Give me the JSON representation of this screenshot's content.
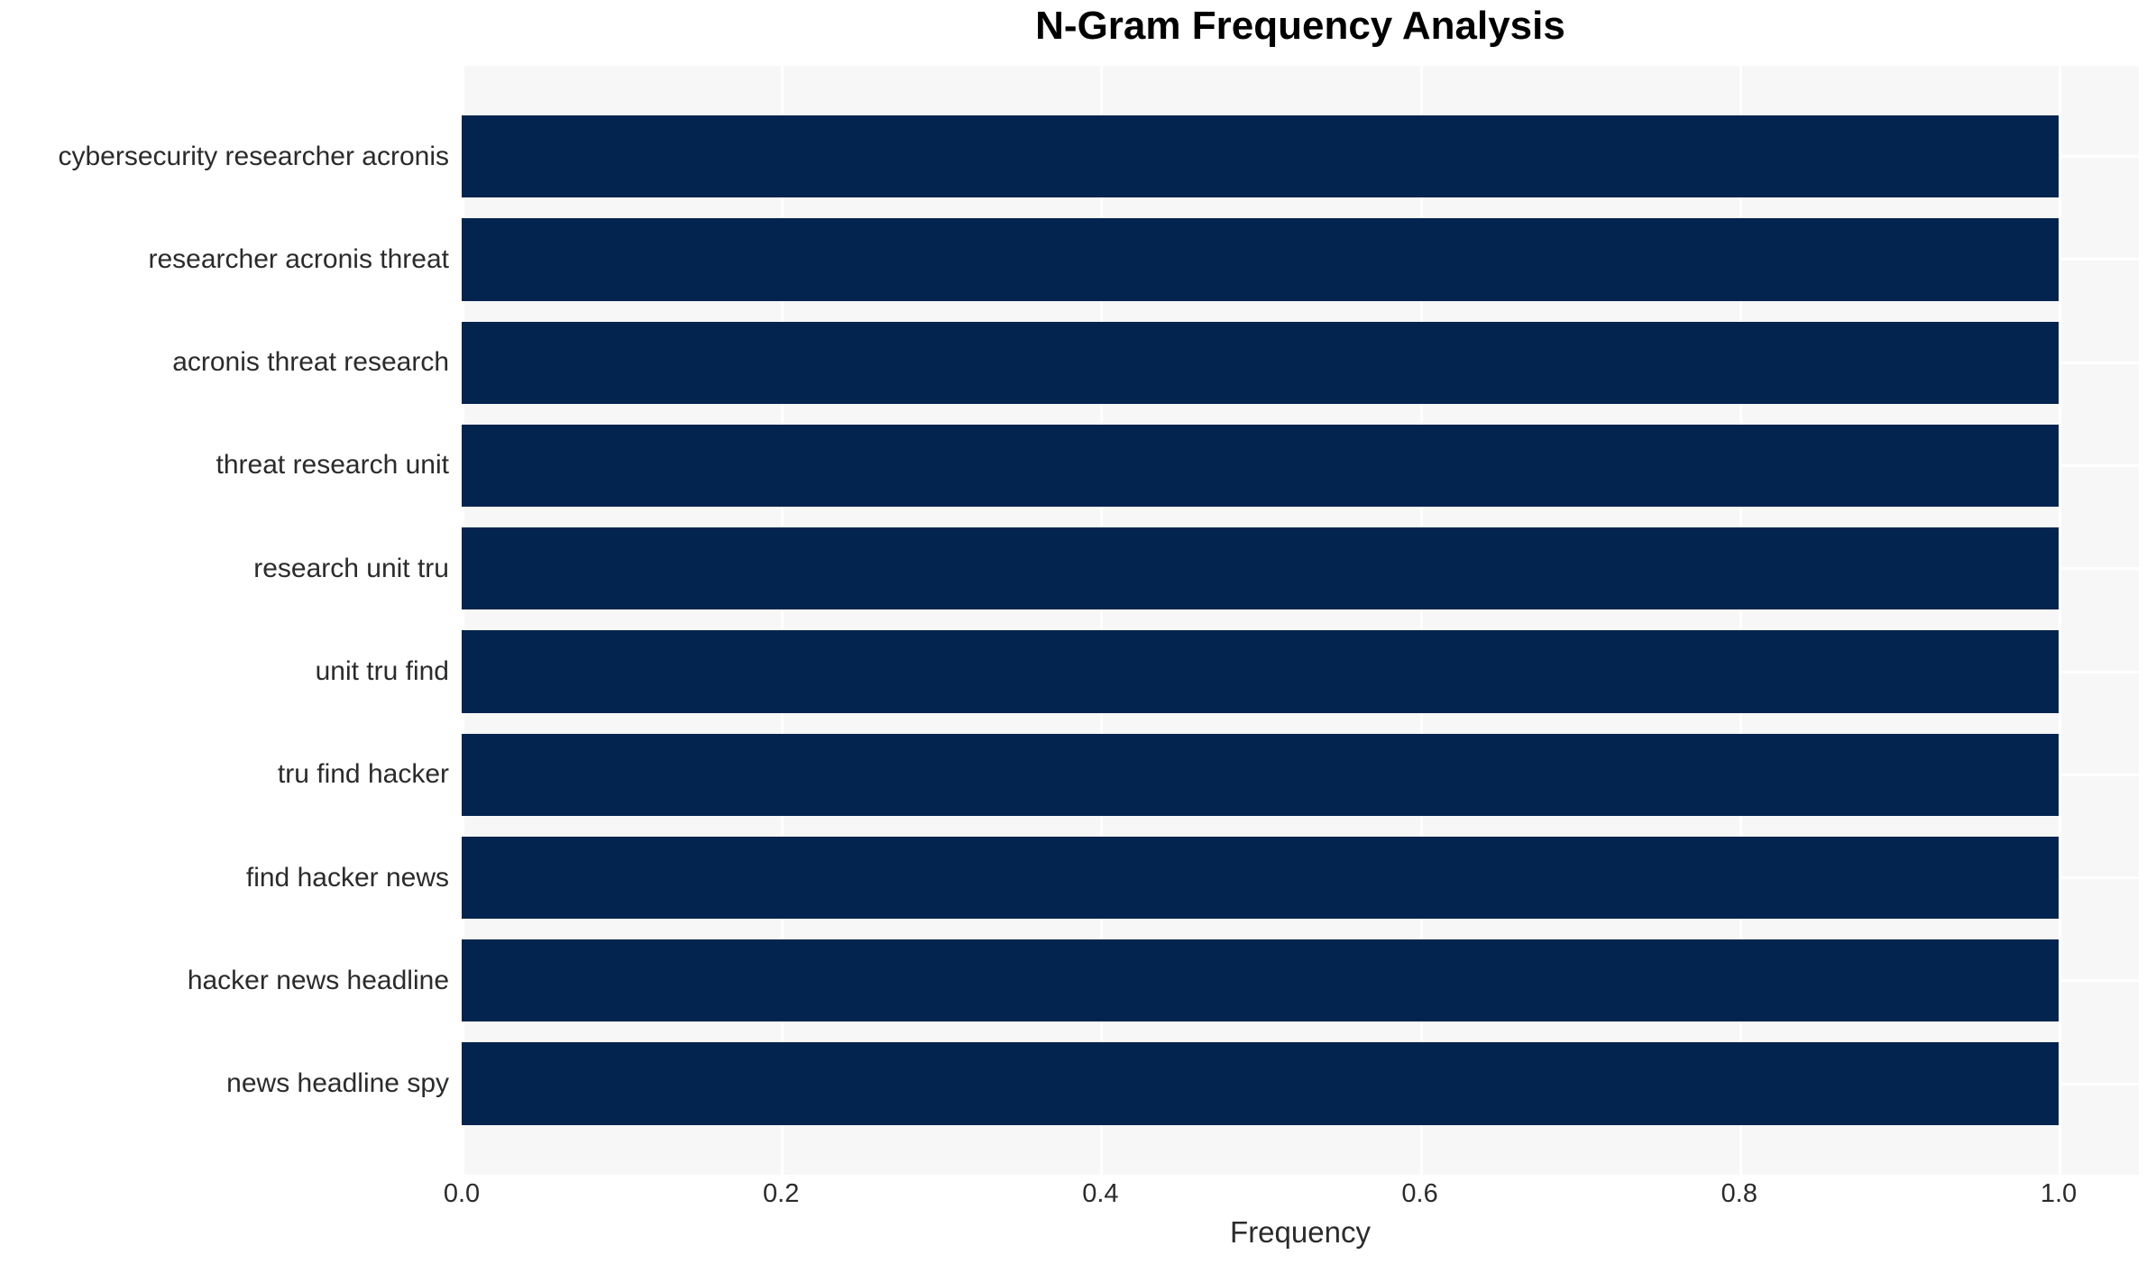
{
  "chart_data": {
    "type": "bar",
    "orientation": "horizontal",
    "title": "N-Gram Frequency Analysis",
    "xlabel": "Frequency",
    "ylabel": "",
    "categories": [
      "cybersecurity researcher acronis",
      "researcher acronis threat",
      "acronis threat research",
      "threat research unit",
      "research unit tru",
      "unit tru find",
      "tru find hacker",
      "find hacker news",
      "hacker news headline",
      "news headline spy"
    ],
    "values": [
      1.0,
      1.0,
      1.0,
      1.0,
      1.0,
      1.0,
      1.0,
      1.0,
      1.0,
      1.0
    ],
    "xlim": [
      0,
      1.05
    ],
    "xticks": [
      0.0,
      0.2,
      0.4,
      0.6,
      0.8,
      1.0
    ],
    "xtick_labels": [
      "0.0",
      "0.2",
      "0.4",
      "0.6",
      "0.8",
      "1.0"
    ],
    "grid": true,
    "gridlines": "white vertical at x ticks and horizontal at category centers",
    "legend_position": "none",
    "colors": {
      "bar": "#02244e",
      "plot_background": "#f7f7f7",
      "gridline": "#ffffff",
      "tick_text": "#2b2b2b",
      "title_text": "#000000",
      "figure_background": "#ffffff"
    }
  }
}
